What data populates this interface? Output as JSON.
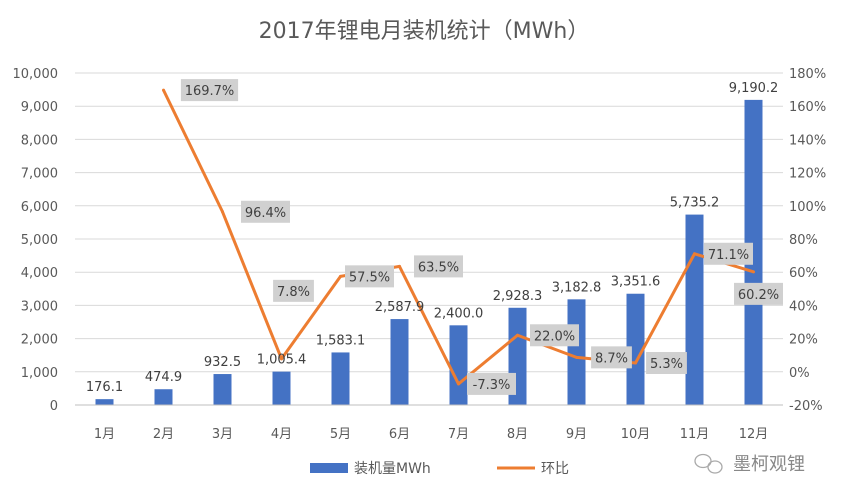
{
  "chart_data": {
    "type": "bar+line",
    "title": "2017年锂电月装机统计（MWh）",
    "categories": [
      "1月",
      "2月",
      "3月",
      "4月",
      "5月",
      "6月",
      "7月",
      "8月",
      "9月",
      "10月",
      "11月",
      "12月"
    ],
    "series": [
      {
        "name": "装机量MWh",
        "type": "bar",
        "axis": "left",
        "color": "#4472C4",
        "values": [
          176.1,
          474.9,
          932.5,
          1005.4,
          1583.1,
          2587.9,
          2400.0,
          2928.3,
          3182.8,
          3351.6,
          5735.2,
          9190.2
        ],
        "labels": [
          "176.1",
          "474.9",
          "932.5",
          "1,005.4",
          "1,583.1",
          "2,587.9",
          "2,400.0",
          "2,928.3",
          "3,182.8",
          "3,351.6",
          "5,735.2",
          "9,190.2"
        ]
      },
      {
        "name": "环比",
        "type": "line",
        "axis": "right",
        "color": "#ED7D31",
        "values": [
          null,
          169.7,
          96.4,
          7.8,
          57.5,
          63.5,
          -7.3,
          22.0,
          8.7,
          5.3,
          71.1,
          60.2
        ],
        "labels": [
          null,
          "169.7%",
          "96.4%",
          "7.8%",
          "57.5%",
          "63.5%",
          "-7.3%",
          "22.0%",
          "8.7%",
          "5.3%",
          "71.1%",
          "60.2%"
        ]
      }
    ],
    "ylim_left": [
      0,
      10000
    ],
    "yticks_left": [
      "0",
      "1,000",
      "2,000",
      "3,000",
      "4,000",
      "5,000",
      "6,000",
      "7,000",
      "8,000",
      "9,000",
      "10,000"
    ],
    "ylim_right": [
      -20,
      180
    ],
    "yticks_right": [
      "-20%",
      "0%",
      "20%",
      "40%",
      "60%",
      "80%",
      "100%",
      "120%",
      "140%",
      "160%",
      "180%"
    ],
    "grid": true,
    "legend": "bottom"
  },
  "watermark": {
    "text": "墨柯观锂",
    "icon": "wechat-icon"
  }
}
